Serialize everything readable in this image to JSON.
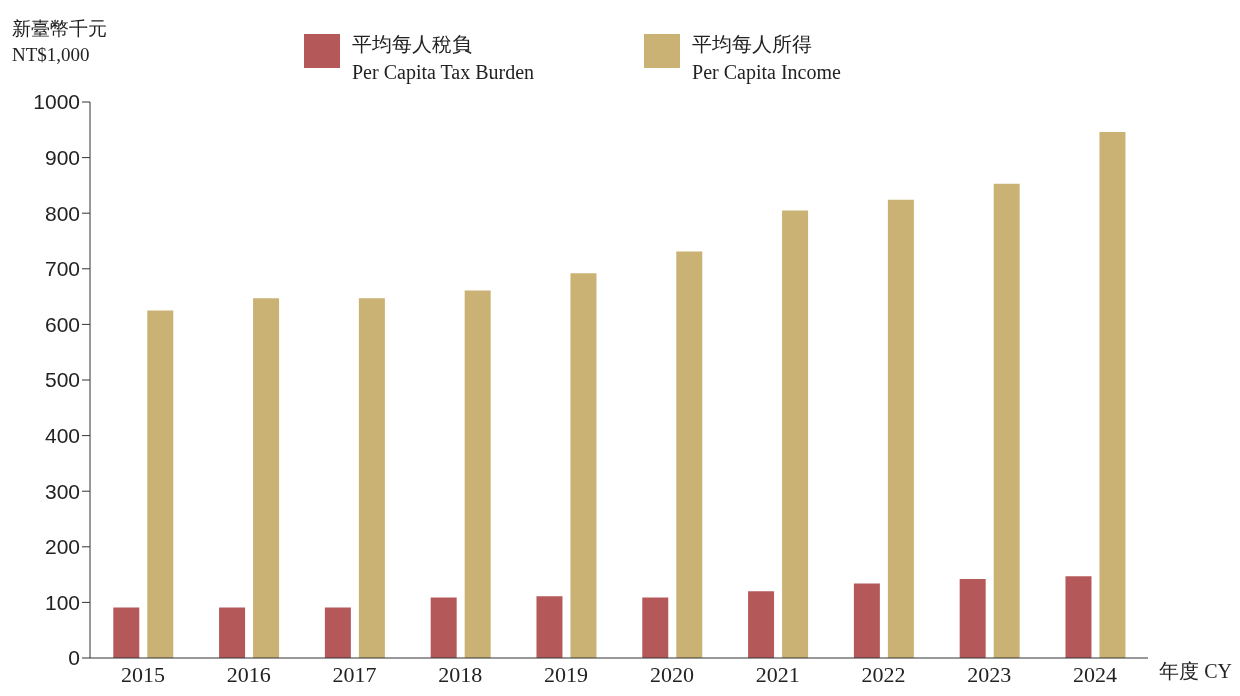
{
  "chart_data": {
    "type": "bar",
    "ylabel": "新臺幣千元\nNT$1,000",
    "xlabel": "年度 CY",
    "categories": [
      "2015",
      "2016",
      "2017",
      "2018",
      "2019",
      "2020",
      "2021",
      "2022",
      "2023",
      "2024"
    ],
    "series": [
      {
        "name": "平均每人稅負\nPer Capita Tax Burden",
        "color": "#b5585a",
        "values": [
          91,
          91,
          91,
          109,
          111,
          109,
          120,
          134,
          142,
          147
        ]
      },
      {
        "name": "平均每人所得\nPer Capita Income",
        "color": "#c9b274",
        "values": [
          625,
          647,
          647,
          661,
          692,
          731,
          805,
          824,
          853,
          946
        ]
      }
    ],
    "ylim": [
      0,
      1000
    ],
    "yticks": [
      0,
      100,
      200,
      300,
      400,
      500,
      600,
      700,
      800,
      900,
      1000
    ],
    "grid": false,
    "legend": "top"
  }
}
